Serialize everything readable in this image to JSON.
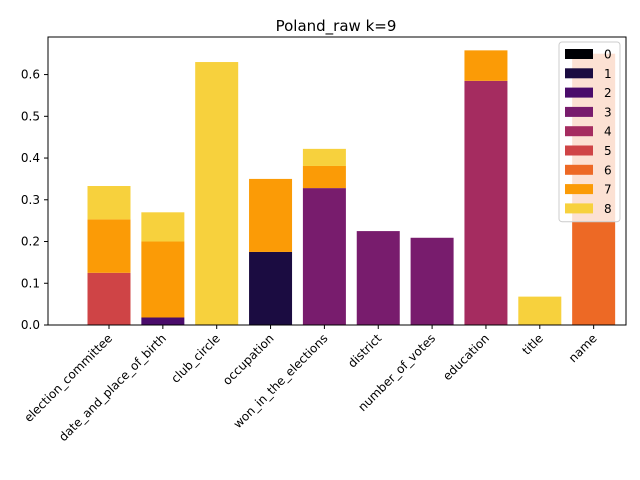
{
  "chart_data": {
    "type": "bar",
    "stacked": true,
    "title": "Poland_raw k=9",
    "xlabel": "",
    "ylabel": "",
    "ylim": [
      0,
      0.69
    ],
    "yticks": [
      "0.0",
      "0.1",
      "0.2",
      "0.3",
      "0.4",
      "0.5",
      "0.6"
    ],
    "grid": false,
    "legend_position": "top-right",
    "categories": [
      "election_committee",
      "date_and_place_of_birth",
      "club_circle",
      "occupation",
      "won_in_the_elections",
      "district",
      "number_of_votes",
      "education",
      "title",
      "name"
    ],
    "series": [
      {
        "name": "0",
        "color": "#000004",
        "values": [
          0,
          0,
          0,
          0,
          0,
          0,
          0,
          0,
          0,
          0
        ]
      },
      {
        "name": "1",
        "color": "#1b0c41",
        "values": [
          0,
          0,
          0,
          0.175,
          0,
          0,
          0,
          0,
          0,
          0
        ]
      },
      {
        "name": "2",
        "color": "#4a0c6b",
        "values": [
          0,
          0.018,
          0,
          0,
          0,
          0,
          0,
          0,
          0,
          0
        ]
      },
      {
        "name": "3",
        "color": "#781c6d",
        "values": [
          0,
          0,
          0,
          0,
          0.328,
          0.225,
          0.209,
          0,
          0,
          0
        ]
      },
      {
        "name": "4",
        "color": "#a52c60",
        "values": [
          0,
          0,
          0,
          0,
          0,
          0,
          0,
          0.585,
          0,
          0
        ]
      },
      {
        "name": "5",
        "color": "#cf4446",
        "values": [
          0.125,
          0,
          0,
          0,
          0,
          0,
          0,
          0,
          0,
          0
        ]
      },
      {
        "name": "6",
        "color": "#ed6925",
        "values": [
          0,
          0,
          0,
          0,
          0,
          0,
          0,
          0,
          0,
          0.65
        ]
      },
      {
        "name": "7",
        "color": "#fb9b06",
        "values": [
          0.128,
          0.182,
          0,
          0.175,
          0.053,
          0,
          0,
          0.073,
          0,
          0
        ]
      },
      {
        "name": "8",
        "color": "#f7d13d",
        "values": [
          0.08,
          0.07,
          0.63,
          0,
          0.041,
          0,
          0,
          0,
          0.068,
          0
        ]
      }
    ]
  }
}
